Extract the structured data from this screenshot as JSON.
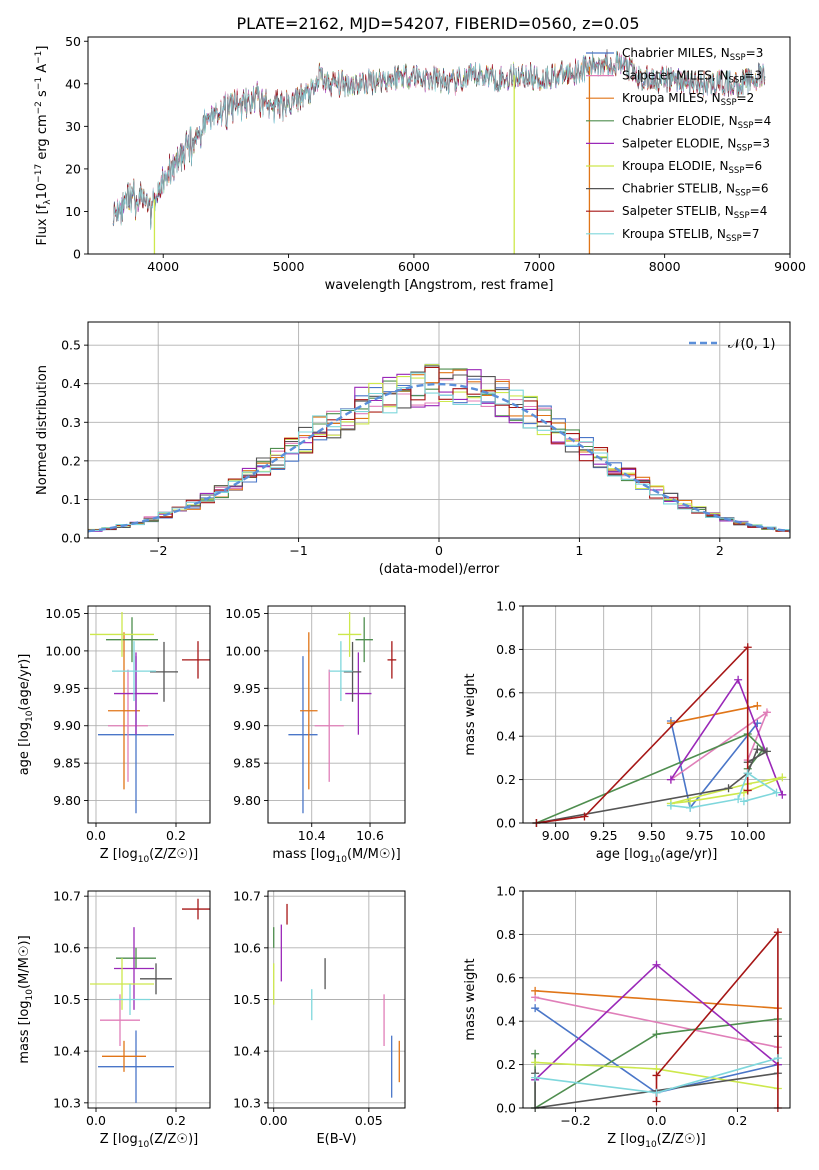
{
  "figure_title": "PLATE=2162, MJD=54207, FIBERID=0560, z=0.05",
  "colors": {
    "chabrier_miles": "#4a76c8",
    "salpeter_miles": "#e07fb9",
    "kroupa_miles": "#e07518",
    "chabrier_elodie": "#4f8e4f",
    "salpeter_elodie": "#9a28b8",
    "kroupa_elodie": "#cde84c",
    "chabrier_stelib": "#555555",
    "salpeter_stelib": "#a61616",
    "kroupa_stelib": "#7fd7dc",
    "normal": "#5b8fd9",
    "grid": "#b0b0b0"
  },
  "chart_data": [
    {
      "id": "spectrum",
      "type": "line",
      "xlabel": "wavelength [Angstrom, rest frame]",
      "ylabel": "Flux [f_λ 10^-17 erg cm^-2 s^-1 A^-1]",
      "xlim": [
        3400,
        9000
      ],
      "ylim": [
        0,
        51
      ],
      "xticks": [
        4000,
        5000,
        6000,
        7000,
        8000,
        9000
      ],
      "yticks": [
        0,
        10,
        20,
        30,
        40,
        50
      ],
      "grid": false,
      "legend_position": "right",
      "legend": [
        {
          "label": "Chabrier MILES, N",
          "sub": "SSP",
          "tail": "=3",
          "color_key": "chabrier_miles"
        },
        {
          "label": "Salpeter MILES, N",
          "sub": "SSP",
          "tail": "=3",
          "color_key": "salpeter_miles"
        },
        {
          "label": "Kroupa MILES, N",
          "sub": "SSP",
          "tail": "=2",
          "color_key": "kroupa_miles"
        },
        {
          "label": "Chabrier ELODIE, N",
          "sub": "SSP",
          "tail": "=4",
          "color_key": "chabrier_elodie"
        },
        {
          "label": "Salpeter ELODIE, N",
          "sub": "SSP",
          "tail": "=3",
          "color_key": "salpeter_elodie"
        },
        {
          "label": "Kroupa ELODIE, N",
          "sub": "SSP",
          "tail": "=6",
          "color_key": "kroupa_elodie"
        },
        {
          "label": "Chabrier STELIB, N",
          "sub": "SSP",
          "tail": "=6",
          "color_key": "chabrier_stelib"
        },
        {
          "label": "Salpeter STELIB, N",
          "sub": "SSP",
          "tail": "=4",
          "color_key": "salpeter_stelib"
        },
        {
          "label": "Kroupa STELIB, N",
          "sub": "SSP",
          "tail": "=7",
          "color_key": "kroupa_stelib"
        }
      ],
      "envelope": {
        "x": [
          3600,
          3700,
          3800,
          3900,
          3950,
          4000,
          4100,
          4200,
          4300,
          4400,
          4500,
          4600,
          4700,
          4800,
          4900,
          5000,
          5100,
          5200,
          5250,
          5300,
          5400,
          5500,
          5600,
          5700,
          5800,
          5900,
          6000,
          6100,
          6200,
          6300,
          6400,
          6500,
          6600,
          6700,
          6800,
          6900,
          7000,
          7100,
          7200,
          7300,
          7400,
          7500,
          7600,
          7700,
          7800,
          7900,
          8000,
          8100,
          8200,
          8300,
          8400,
          8500,
          8600,
          8700,
          8800
        ],
        "y": [
          10,
          12,
          13,
          11,
          14,
          17,
          21,
          25,
          29,
          33,
          34,
          35,
          36,
          36,
          35,
          35,
          37,
          38,
          42,
          40,
          40,
          40,
          40,
          41,
          41,
          42,
          42,
          41,
          41,
          40,
          41,
          42,
          42,
          41,
          42,
          42,
          41,
          42,
          42,
          43,
          44,
          45,
          45,
          44,
          41,
          41,
          41,
          41,
          40,
          40,
          40,
          40,
          40,
          41,
          42
        ]
      },
      "dips": [
        {
          "x": 3930,
          "y": 0,
          "color_key": "kroupa_elodie"
        },
        {
          "x": 6800,
          "y": 0,
          "color_key": "kroupa_elodie"
        },
        {
          "x": 7400,
          "y": 0,
          "color_key": "kroupa_miles"
        }
      ]
    },
    {
      "id": "residuals",
      "type": "line",
      "xlabel": "(data-model)/error",
      "ylabel": "Normed distribution",
      "xlim": [
        -2.5,
        2.5
      ],
      "ylim": [
        0,
        0.56
      ],
      "xticks": [
        -2,
        -1,
        0,
        1,
        2
      ],
      "yticks": [
        0.0,
        0.1,
        0.2,
        0.3,
        0.4,
        0.5
      ],
      "grid": true,
      "legend_position": "top-right",
      "legend": [
        {
          "label": "𝒩(0, 1)",
          "color_key": "normal",
          "dash": true
        }
      ],
      "bin_width": 0.1
    },
    {
      "id": "age_vs_Z",
      "type": "scatter",
      "xlabel": "Z [log10(Z/Z☉)]",
      "ylabel": "age  [log10(age/yr)]",
      "xlim": [
        -0.02,
        0.285
      ],
      "ylim": [
        9.77,
        10.06
      ],
      "xticks": [
        0.0,
        0.2
      ],
      "yticks": [
        9.8,
        9.85,
        9.9,
        9.95,
        10.0,
        10.05
      ],
      "grid": true,
      "points": [
        {
          "x": 0.1,
          "y": 9.888,
          "xerr": 0.095,
          "yerr": 0.105,
          "color_key": "chabrier_miles"
        },
        {
          "x": 0.08,
          "y": 9.9,
          "xerr": 0.05,
          "yerr": 0.075,
          "color_key": "salpeter_miles"
        },
        {
          "x": 0.07,
          "y": 9.92,
          "xerr": 0.04,
          "yerr": 0.105,
          "color_key": "kroupa_miles"
        },
        {
          "x": 0.09,
          "y": 10.015,
          "xerr": 0.065,
          "yerr": 0.03,
          "color_key": "chabrier_elodie"
        },
        {
          "x": 0.1,
          "y": 9.943,
          "xerr": 0.055,
          "yerr": 0.055,
          "color_key": "salpeter_elodie"
        },
        {
          "x": 0.065,
          "y": 10.022,
          "xerr": 0.08,
          "yerr": 0.03,
          "color_key": "kroupa_elodie"
        },
        {
          "x": 0.17,
          "y": 9.972,
          "xerr": 0.035,
          "yerr": 0.04,
          "color_key": "chabrier_stelib"
        },
        {
          "x": 0.255,
          "y": 9.988,
          "xerr": 0.04,
          "yerr": 0.025,
          "color_key": "salpeter_stelib"
        },
        {
          "x": 0.095,
          "y": 9.973,
          "xerr": 0.055,
          "yerr": 0.04,
          "color_key": "kroupa_stelib"
        }
      ]
    },
    {
      "id": "age_vs_mass",
      "type": "scatter",
      "xlabel": "mass [log10(M/M☉)]",
      "ylabel": "",
      "xlim": [
        10.25,
        10.72
      ],
      "ylim": [
        9.77,
        10.06
      ],
      "xticks": [
        10.4,
        10.6
      ],
      "yticks": [
        9.8,
        9.85,
        9.9,
        9.95,
        10.0,
        10.05
      ],
      "grid": true,
      "points": [
        {
          "x": 10.37,
          "y": 9.888,
          "xerr": 0.05,
          "yerr": 0.105,
          "color_key": "chabrier_miles"
        },
        {
          "x": 10.46,
          "y": 9.9,
          "xerr": 0.05,
          "yerr": 0.075,
          "color_key": "salpeter_miles"
        },
        {
          "x": 10.39,
          "y": 9.92,
          "xerr": 0.03,
          "yerr": 0.105,
          "color_key": "kroupa_miles"
        },
        {
          "x": 10.58,
          "y": 10.015,
          "xerr": 0.03,
          "yerr": 0.03,
          "color_key": "chabrier_elodie"
        },
        {
          "x": 10.56,
          "y": 9.943,
          "xerr": 0.045,
          "yerr": 0.055,
          "color_key": "salpeter_elodie"
        },
        {
          "x": 10.53,
          "y": 10.022,
          "xerr": 0.04,
          "yerr": 0.03,
          "color_key": "kroupa_elodie"
        },
        {
          "x": 10.54,
          "y": 9.972,
          "xerr": 0.03,
          "yerr": 0.04,
          "color_key": "chabrier_stelib"
        },
        {
          "x": 10.675,
          "y": 9.988,
          "xerr": 0.015,
          "yerr": 0.025,
          "color_key": "salpeter_stelib"
        },
        {
          "x": 10.5,
          "y": 9.973,
          "xerr": 0.04,
          "yerr": 0.04,
          "color_key": "kroupa_stelib"
        }
      ]
    },
    {
      "id": "weight_vs_age",
      "type": "line",
      "xlabel": "age  [log10(age/yr)]",
      "ylabel": "mass weight",
      "xlim": [
        8.83,
        10.22
      ],
      "ylim": [
        0,
        1.0
      ],
      "xticks": [
        9.0,
        9.25,
        9.5,
        9.75,
        10.0
      ],
      "yticks": [
        0.0,
        0.2,
        0.4,
        0.6,
        0.8,
        1.0
      ],
      "grid": true,
      "series": [
        {
          "color_key": "chabrier_miles",
          "x": [
            9.6,
            9.7,
            10.05
          ],
          "y": [
            0.47,
            0.07,
            0.46
          ]
        },
        {
          "color_key": "salpeter_miles",
          "x": [
            9.6,
            10.1,
            10.0
          ],
          "y": [
            0.2,
            0.51,
            0.29
          ]
        },
        {
          "color_key": "kroupa_miles",
          "x": [
            9.6,
            10.05
          ],
          "y": [
            0.46,
            0.54
          ]
        },
        {
          "color_key": "chabrier_elodie",
          "x": [
            8.9,
            10.0,
            10.08,
            10.0
          ],
          "y": [
            0.0,
            0.41,
            0.34,
            0.25
          ]
        },
        {
          "color_key": "salpeter_elodie",
          "x": [
            9.6,
            9.95,
            10.18
          ],
          "y": [
            0.2,
            0.66,
            0.13
          ]
        },
        {
          "color_key": "kroupa_elodie",
          "x": [
            9.6,
            9.7,
            9.98,
            10.18,
            10.0,
            9.6
          ],
          "y": [
            0.09,
            0.1,
            0.14,
            0.21,
            0.18,
            0.09
          ]
        },
        {
          "color_key": "chabrier_stelib",
          "x": [
            8.9,
            9.9,
            10.0,
            10.05,
            10.1,
            10.0
          ],
          "y": [
            0.0,
            0.16,
            0.23,
            0.34,
            0.33,
            0.28
          ]
        },
        {
          "color_key": "salpeter_stelib",
          "x": [
            8.9,
            9.15,
            10.0,
            10.0
          ],
          "y": [
            0.0,
            0.03,
            0.81,
            0.15
          ]
        },
        {
          "color_key": "kroupa_stelib",
          "x": [
            9.6,
            9.7,
            9.95,
            10.0,
            10.15,
            9.98
          ],
          "y": [
            0.08,
            0.07,
            0.11,
            0.23,
            0.14,
            0.1
          ]
        }
      ]
    },
    {
      "id": "mass_vs_Z",
      "type": "scatter",
      "xlabel": "Z [log10(Z/Z☉)]",
      "ylabel": "mass [log10(M/M☉)]",
      "xlim": [
        -0.02,
        0.285
      ],
      "ylim": [
        10.29,
        10.71
      ],
      "xticks": [
        0.0,
        0.2
      ],
      "yticks": [
        10.3,
        10.4,
        10.5,
        10.6,
        10.7
      ],
      "grid": true,
      "points": [
        {
          "x": 0.1,
          "y": 10.37,
          "xerr": 0.095,
          "yerr": 0.07,
          "color_key": "chabrier_miles"
        },
        {
          "x": 0.06,
          "y": 10.46,
          "xerr": 0.05,
          "yerr": 0.05,
          "color_key": "salpeter_miles"
        },
        {
          "x": 0.07,
          "y": 10.39,
          "xerr": 0.055,
          "yerr": 0.03,
          "color_key": "kroupa_miles"
        },
        {
          "x": 0.1,
          "y": 10.58,
          "xerr": 0.05,
          "yerr": 0.02,
          "color_key": "chabrier_elodie"
        },
        {
          "x": 0.095,
          "y": 10.56,
          "xerr": 0.05,
          "yerr": 0.08,
          "color_key": "salpeter_elodie"
        },
        {
          "x": 0.065,
          "y": 10.53,
          "xerr": 0.08,
          "yerr": 0.05,
          "color_key": "kroupa_elodie"
        },
        {
          "x": 0.15,
          "y": 10.54,
          "xerr": 0.04,
          "yerr": 0.03,
          "color_key": "chabrier_stelib"
        },
        {
          "x": 0.255,
          "y": 10.675,
          "xerr": 0.04,
          "yerr": 0.02,
          "color_key": "salpeter_stelib"
        },
        {
          "x": 0.085,
          "y": 10.5,
          "xerr": 0.05,
          "yerr": 0.03,
          "color_key": "kroupa_stelib"
        }
      ]
    },
    {
      "id": "mass_vs_EBV",
      "type": "scatter",
      "xlabel": "E(B-V)",
      "ylabel": "",
      "xlim": [
        -0.003,
        0.069
      ],
      "ylim": [
        10.29,
        10.71
      ],
      "xticks": [
        0.0,
        0.05
      ],
      "yticks": [
        10.3,
        10.4,
        10.5,
        10.6,
        10.7
      ],
      "grid": true,
      "points": [
        {
          "x": 0.062,
          "y": 10.37,
          "xerr": 0,
          "yerr": 0.06,
          "color_key": "chabrier_miles"
        },
        {
          "x": 0.058,
          "y": 10.46,
          "xerr": 0,
          "yerr": 0.05,
          "color_key": "salpeter_miles"
        },
        {
          "x": 0.066,
          "y": 10.38,
          "xerr": 0,
          "yerr": 0.04,
          "color_key": "kroupa_miles"
        },
        {
          "x": 0.0,
          "y": 10.62,
          "xerr": 0,
          "yerr": 0.02,
          "color_key": "chabrier_elodie"
        },
        {
          "x": 0.004,
          "y": 10.59,
          "xerr": 0,
          "yerr": 0.055,
          "color_key": "salpeter_elodie"
        },
        {
          "x": 0.0,
          "y": 10.53,
          "xerr": 0,
          "yerr": 0.04,
          "color_key": "kroupa_elodie"
        },
        {
          "x": 0.027,
          "y": 10.55,
          "xerr": 0,
          "yerr": 0.03,
          "color_key": "chabrier_stelib"
        },
        {
          "x": 0.007,
          "y": 10.665,
          "xerr": 0,
          "yerr": 0.02,
          "color_key": "salpeter_stelib"
        },
        {
          "x": 0.02,
          "y": 10.49,
          "xerr": 0,
          "yerr": 0.03,
          "color_key": "kroupa_stelib"
        }
      ]
    },
    {
      "id": "weight_vs_Z",
      "type": "line",
      "xlabel": "Z [log10(Z/Z☉)]",
      "ylabel": "mass weight",
      "xlim": [
        -0.33,
        0.33
      ],
      "ylim": [
        0,
        1.0
      ],
      "xticks": [
        -0.2,
        0.0,
        0.2
      ],
      "yticks": [
        0.0,
        0.2,
        0.4,
        0.6,
        0.8,
        1.0
      ],
      "grid": true,
      "series": [
        {
          "color_key": "chabrier_miles",
          "x": [
            -0.3,
            0.0,
            0.3
          ],
          "y": [
            0.46,
            0.07,
            0.2
          ]
        },
        {
          "color_key": "salpeter_miles",
          "x": [
            -0.3,
            0.3
          ],
          "y": [
            0.51,
            0.28
          ]
        },
        {
          "color_key": "kroupa_miles",
          "x": [
            -0.3,
            0.3
          ],
          "y": [
            0.54,
            0.46
          ]
        },
        {
          "color_key": "chabrier_elodie",
          "x": [
            -0.3,
            -0.3,
            0.0,
            0.3
          ],
          "y": [
            0.25,
            0.0,
            0.34,
            0.41
          ]
        },
        {
          "color_key": "salpeter_elodie",
          "x": [
            -0.3,
            0.0,
            0.3
          ],
          "y": [
            0.13,
            0.66,
            0.2
          ]
        },
        {
          "color_key": "kroupa_elodie",
          "x": [
            -0.3,
            0.0,
            0.3
          ],
          "y": [
            0.21,
            0.18,
            0.09
          ]
        },
        {
          "color_key": "chabrier_stelib",
          "x": [
            -0.3,
            -0.3,
            0.3,
            0.3
          ],
          "y": [
            0.16,
            0.0,
            0.16,
            0.33
          ]
        },
        {
          "color_key": "salpeter_stelib",
          "x": [
            0.0,
            0.0,
            0.3,
            0.3
          ],
          "y": [
            0.03,
            0.15,
            0.81,
            0.0
          ]
        },
        {
          "color_key": "kroupa_stelib",
          "x": [
            -0.3,
            0.0,
            0.3
          ],
          "y": [
            0.14,
            0.07,
            0.23
          ]
        }
      ]
    }
  ]
}
